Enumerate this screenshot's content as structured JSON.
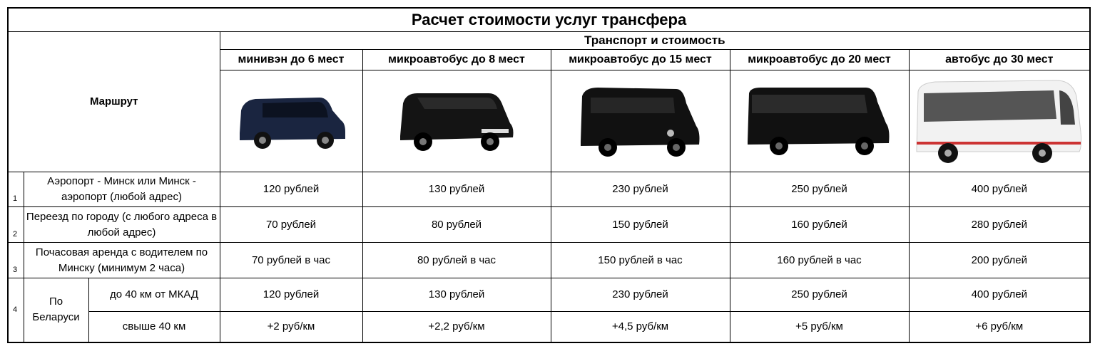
{
  "title": "Расчет стоимости услуг трансфера",
  "route_header": "Маршрут",
  "transport_header": "Транспорт и стоимость",
  "vehicles": [
    {
      "name": "минивэн до 6 мест",
      "icon": "minivan-image",
      "color": "#1a2540"
    },
    {
      "name": "микроавтобус до 8 мест",
      "icon": "minibus-image",
      "color": "#141414"
    },
    {
      "name": "микроавтобус до 15 мест",
      "icon": "sprinter-image",
      "color": "#111111"
    },
    {
      "name": "микроавтобус до 20 мест",
      "icon": "sprinter-long-image",
      "color": "#111111"
    },
    {
      "name": "автобус до 30 мест",
      "icon": "bus-image",
      "color": "#f2f2f2"
    }
  ],
  "rows": [
    {
      "num": "1",
      "route": "Аэропорт - Минск или Минск - аэропорт (любой адрес)",
      "prices": [
        "120 рублей",
        "130 рублей",
        "230 рублей",
        "250 рублей",
        "400 рублей"
      ]
    },
    {
      "num": "2",
      "route": "Переезд по городу (с любого адреса в любой адрес)",
      "prices": [
        "70 рублей",
        "80 рублей",
        "150 рублей",
        "160 рублей",
        "280 рублей"
      ]
    },
    {
      "num": "3",
      "route": "Почасовая аренда с водителем по Минску (минимум 2 часа)",
      "prices": [
        "70 рублей в час",
        "80 рублей в час",
        "150 рублей в час",
        "160 рублей в час",
        "200 рублей"
      ]
    }
  ],
  "belarus": {
    "num": "4",
    "label": "По Беларуси",
    "sub": [
      {
        "route": "до 40 км от МКАД",
        "prices": [
          "120 рублей",
          "130 рублей",
          "230 рублей",
          "250 рублей",
          "400 рублей"
        ]
      },
      {
        "route": "свыше 40 км",
        "prices": [
          "+2 руб/км",
          "+2,2 руб/км",
          "+4,5 руб/км",
          "+5 руб/км",
          "+6 руб/км"
        ]
      }
    ]
  }
}
